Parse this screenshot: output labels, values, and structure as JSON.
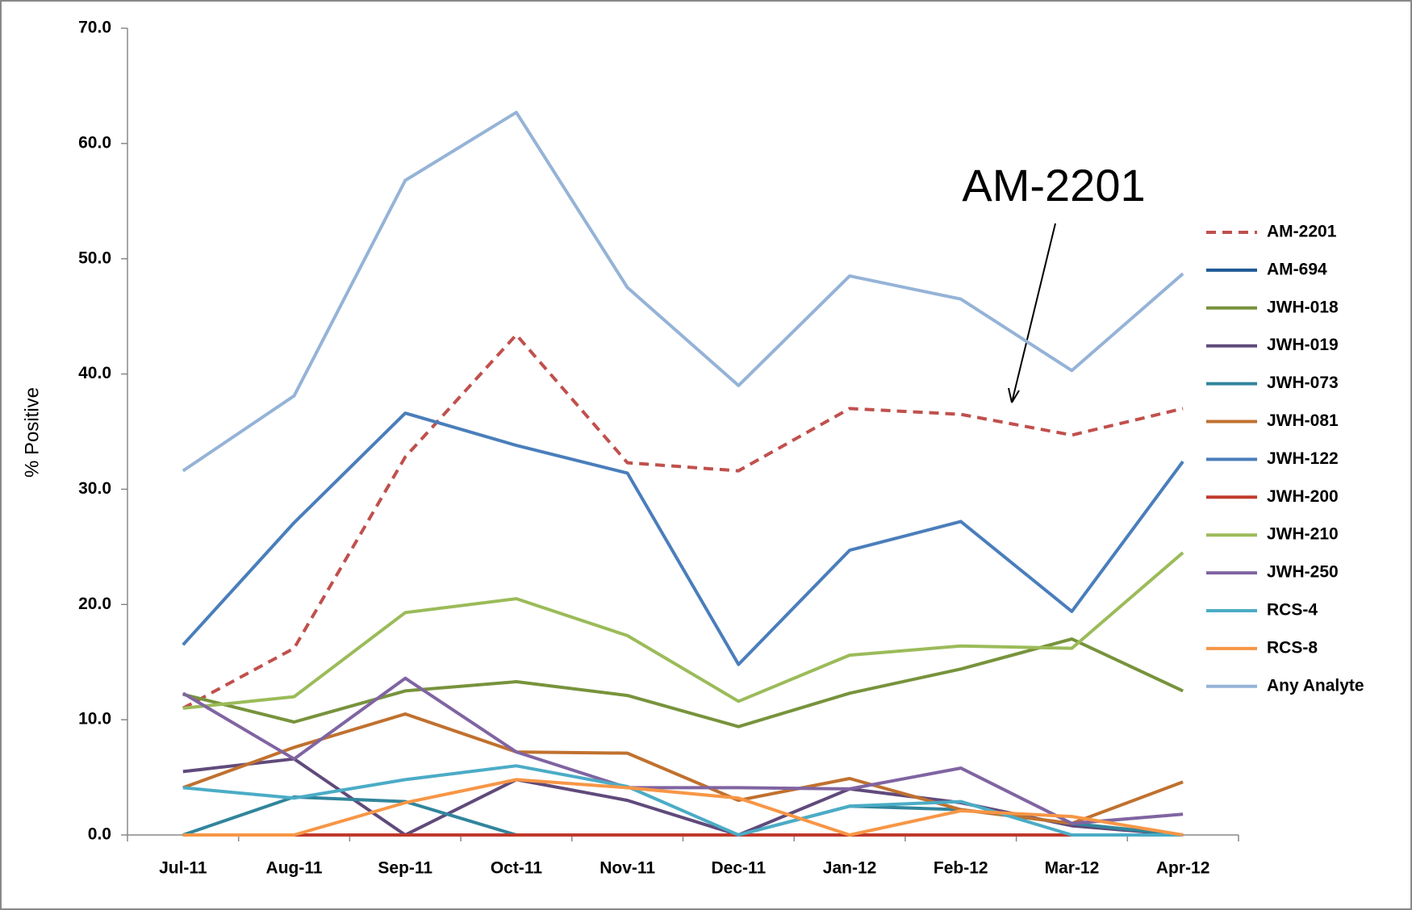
{
  "chart_data": {
    "type": "line",
    "y_label": "% Positive",
    "annotation": "AM-2201",
    "categories": [
      "Jul-11",
      "Aug-11",
      "Sep-11",
      "Oct-11",
      "Nov-11",
      "Dec-11",
      "Jan-12",
      "Feb-12",
      "Mar-12",
      "Apr-12"
    ],
    "ylim": [
      0,
      70
    ],
    "yticks": [
      {
        "value": 0,
        "label": "0.0"
      },
      {
        "value": 10,
        "label": "10.0"
      },
      {
        "value": 20,
        "label": "20.0"
      },
      {
        "value": 30,
        "label": "30.0"
      },
      {
        "value": 40,
        "label": "40.0"
      },
      {
        "value": 50,
        "label": "50.0"
      },
      {
        "value": 60,
        "label": "60.0"
      },
      {
        "value": 70,
        "label": "70.0"
      }
    ],
    "legend": "right",
    "series": [
      {
        "name": "AM-2201",
        "color": "#c0504d",
        "style": "dashed",
        "values": [
          11.0,
          16.2,
          32.8,
          43.4,
          32.3,
          31.6,
          37.0,
          36.5,
          34.7,
          37.0
        ]
      },
      {
        "name": "AM-694",
        "color": "#1f5a96",
        "values": [
          0,
          0,
          0,
          0,
          0,
          0,
          0,
          0,
          0,
          0
        ]
      },
      {
        "name": "JWH-018",
        "color": "#77933c",
        "values": [
          12.2,
          9.8,
          12.5,
          13.3,
          12.1,
          9.4,
          12.3,
          14.4,
          17.0,
          12.5
        ]
      },
      {
        "name": "JWH-019",
        "color": "#604a7b",
        "values": [
          5.5,
          6.6,
          0,
          4.8,
          3.0,
          0,
          4.0,
          2.8,
          0.8,
          0
        ]
      },
      {
        "name": "JWH-073",
        "color": "#31859c",
        "values": [
          0,
          3.3,
          2.9,
          0,
          0,
          0,
          2.5,
          2.2,
          1.0,
          0
        ]
      },
      {
        "name": "JWH-081",
        "color": "#c0712f",
        "values": [
          4.1,
          7.6,
          10.5,
          7.2,
          7.1,
          3.0,
          4.9,
          2.2,
          1.0,
          4.6
        ]
      },
      {
        "name": "JWH-122",
        "color": "#4a7ebb",
        "values": [
          16.5,
          27.1,
          36.6,
          33.8,
          31.4,
          14.8,
          24.7,
          27.2,
          19.4,
          32.4
        ]
      },
      {
        "name": "JWH-200",
        "color": "#c0392b",
        "values": [
          0,
          0,
          0,
          0,
          0,
          0,
          0,
          0,
          0,
          0
        ]
      },
      {
        "name": "JWH-210",
        "color": "#9bbb59",
        "values": [
          11.0,
          12.0,
          19.3,
          20.5,
          17.3,
          11.6,
          15.6,
          16.4,
          16.2,
          24.5
        ]
      },
      {
        "name": "JWH-250",
        "color": "#8064a2",
        "values": [
          12.3,
          6.6,
          13.6,
          7.2,
          4.1,
          4.1,
          4.0,
          5.8,
          1.0,
          1.8
        ]
      },
      {
        "name": "RCS-4",
        "color": "#4bacc6",
        "values": [
          4.1,
          3.2,
          4.8,
          6.0,
          4.2,
          0,
          2.5,
          2.9,
          0,
          0
        ]
      },
      {
        "name": "RCS-8",
        "color": "#f79646",
        "values": [
          0,
          0,
          2.8,
          4.8,
          4.1,
          3.2,
          0,
          2.1,
          1.6,
          0
        ]
      },
      {
        "name": "Any Analyte",
        "color": "#95b3d7",
        "values": [
          31.6,
          38.1,
          56.8,
          62.7,
          47.5,
          39.0,
          48.5,
          46.5,
          40.3,
          48.7
        ]
      }
    ]
  }
}
